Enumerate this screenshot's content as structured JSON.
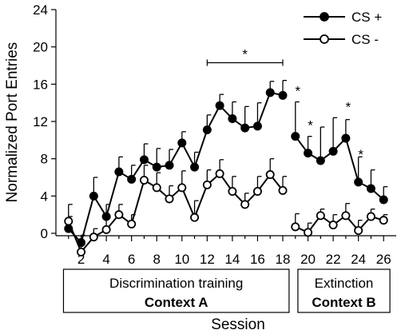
{
  "chart_data": {
    "type": "line",
    "ylabel": "Normalized Port Entries",
    "xlabel": "Session",
    "ylim": [
      0,
      24
    ],
    "xlim": [
      0,
      27
    ],
    "y_ticks": [
      0,
      4,
      8,
      12,
      16,
      20,
      24
    ],
    "x_ticks": [
      2,
      4,
      6,
      8,
      10,
      12,
      14,
      16,
      18,
      20,
      22,
      24,
      26
    ],
    "grid": false,
    "legend_position": "top-right",
    "series": [
      {
        "name": "CS +",
        "marker": "filled",
        "phases": [
          {
            "x": [
              1,
              2,
              3,
              4,
              5,
              6,
              7,
              8,
              9,
              10,
              11,
              12,
              13,
              14,
              15,
              16,
              17,
              18
            ],
            "y": [
              0.5,
              -1.0,
              4.0,
              1.8,
              6.6,
              5.8,
              7.9,
              7.1,
              7.3,
              9.7,
              7.1,
              11.1,
              13.7,
              12.3,
              11.3,
              11.5,
              15.1,
              14.8
            ],
            "err": [
              1.3,
              0.8,
              2.0,
              1.3,
              1.6,
              1.5,
              1.7,
              2.0,
              1.7,
              1.2,
              1.6,
              1.6,
              1.2,
              1.8,
              2.3,
              2.5,
              1.2,
              1.6
            ]
          },
          {
            "x": [
              19,
              20,
              21,
              22,
              23,
              24,
              25,
              26
            ],
            "y": [
              10.4,
              8.6,
              7.8,
              8.8,
              10.2,
              5.5,
              4.8,
              3.6
            ],
            "err": [
              3.7,
              1.8,
              3.6,
              3.6,
              2.0,
              2.7,
              2.0,
              1.4
            ]
          }
        ]
      },
      {
        "name": "CS -",
        "marker": "open",
        "phases": [
          {
            "x": [
              1,
              2,
              3,
              4,
              5,
              6,
              7,
              8,
              9,
              10,
              11,
              12,
              13,
              14,
              15,
              16,
              17,
              18
            ],
            "y": [
              1.3,
              -2.0,
              -0.4,
              0.4,
              2.0,
              1.0,
              5.7,
              4.9,
              3.7,
              4.9,
              1.7,
              5.2,
              6.4,
              4.5,
              3.1,
              4.5,
              6.3,
              4.6
            ],
            "err": [
              1.8,
              0.8,
              0.9,
              1.2,
              1.1,
              1.0,
              1.6,
              1.6,
              1.4,
              1.8,
              1.8,
              1.6,
              1.5,
              1.6,
              1.2,
              1.6,
              1.7,
              1.5
            ]
          },
          {
            "x": [
              19,
              20,
              21,
              22,
              23,
              24,
              25,
              26
            ],
            "y": [
              0.7,
              0.1,
              1.9,
              0.9,
              1.9,
              0.3,
              1.8,
              1.4
            ],
            "err": [
              1.4,
              1.0,
              0.7,
              1.1,
              1.3,
              1.1,
              0.8,
              0.6
            ]
          }
        ]
      }
    ],
    "annotations": [
      {
        "text": "*",
        "x": 19,
        "y": 15.3
      },
      {
        "text": "*",
        "x": 20,
        "y": 11.6
      },
      {
        "text": "*",
        "x": 23,
        "y": 13.6
      },
      {
        "text": "*",
        "x": 24,
        "y": 8.5
      }
    ],
    "bracket": {
      "x_start": 12,
      "x_end": 18,
      "y": 18.3,
      "label": "*"
    },
    "phase_boxes": [
      {
        "line1": "Discrimination training",
        "line2": "Context A",
        "x_start": 0.6,
        "x_end": 18.5
      },
      {
        "line1": "Extinction",
        "line2": "Context B",
        "x_start": 19.2,
        "x_end": 26.5
      }
    ]
  }
}
